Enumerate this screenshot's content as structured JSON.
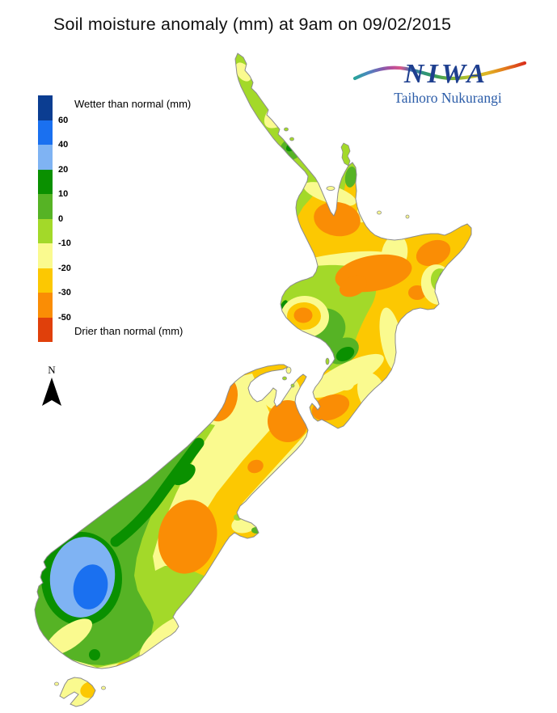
{
  "title": "Soil moisture anomaly (mm) at 9am on 09/02/2015",
  "logo": {
    "name": "NIWA",
    "subtitle": "Taihoro Nukurangi"
  },
  "legend": {
    "wetter_label": "Wetter than normal (mm)",
    "drier_label": "Drier than normal (mm)",
    "ticks": [
      "60",
      "40",
      "20",
      "10",
      "0",
      "-10",
      "-20",
      "-30",
      "-50"
    ],
    "colors": [
      "#0B3D91",
      "#1A70F0",
      "#7FB3F3",
      "#0A9000",
      "#56B325",
      "#A3D929",
      "#FAFA8F",
      "#FCC802",
      "#FA8D05",
      "#E0400B"
    ]
  },
  "compass": {
    "label": "N"
  }
}
